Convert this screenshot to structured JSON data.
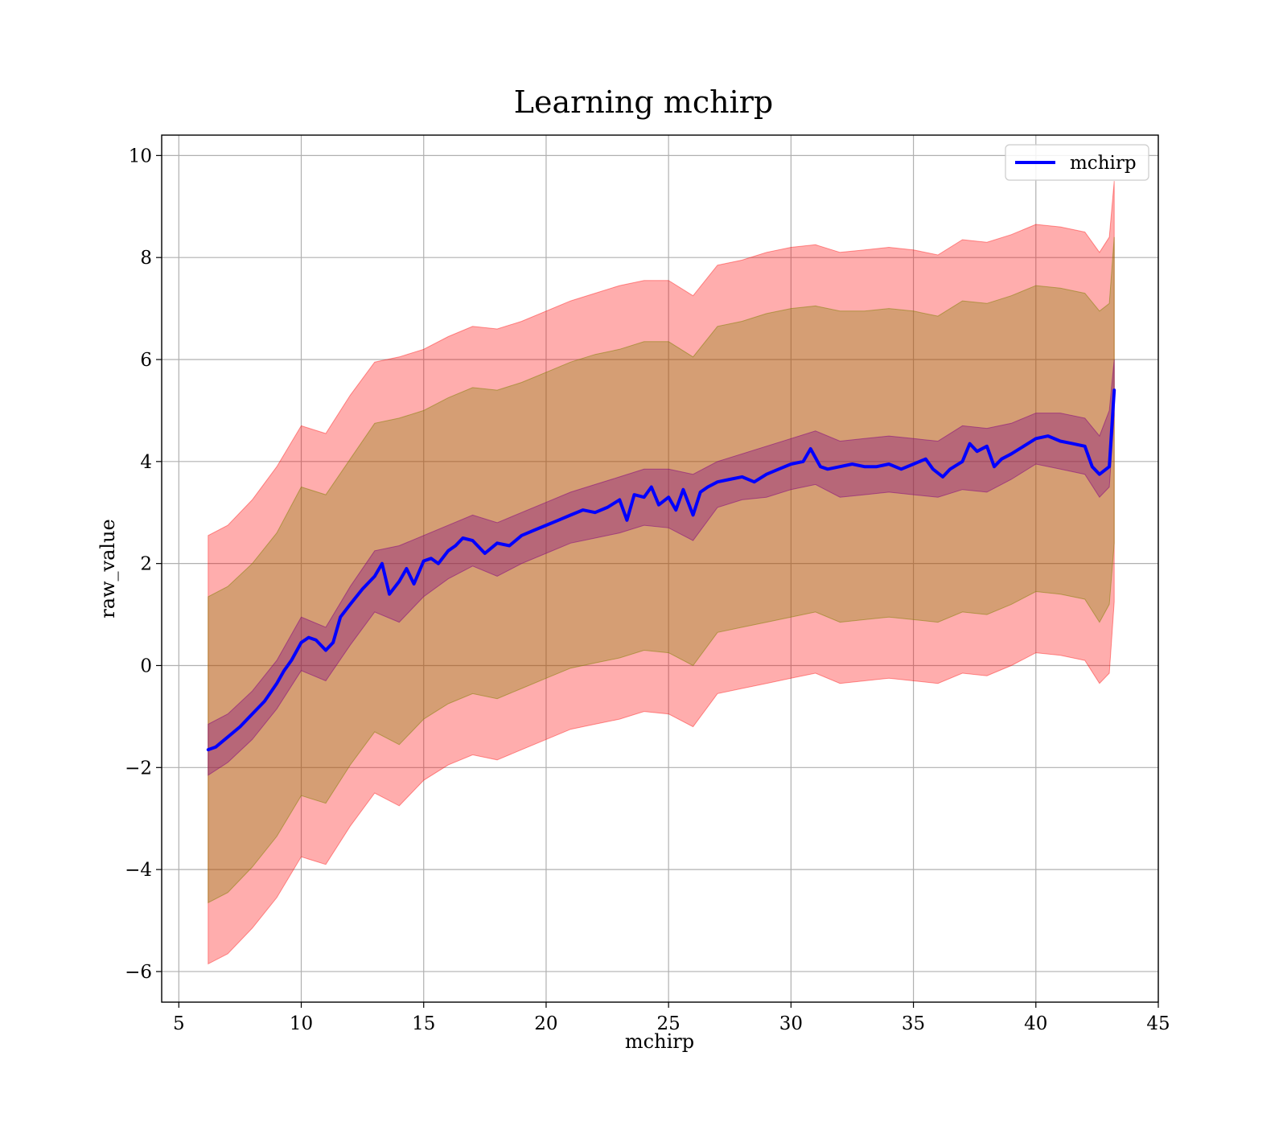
{
  "chart_data": {
    "type": "line",
    "title": "Learning mchirp",
    "xlabel": "mchirp",
    "ylabel": "raw_value",
    "xlim": [
      4.3,
      45
    ],
    "ylim": [
      -6.6,
      10.4
    ],
    "xticks": [
      5,
      10,
      15,
      20,
      25,
      30,
      35,
      40,
      45
    ],
    "yticks": [
      -6,
      -4,
      -2,
      0,
      2,
      4,
      6,
      8,
      10
    ],
    "xtick_labels": [
      "5",
      "10",
      "15",
      "20",
      "25",
      "30",
      "35",
      "40",
      "45"
    ],
    "ytick_labels": [
      "−6",
      "−4",
      "−2",
      "0",
      "2",
      "4",
      "6",
      "8",
      "10"
    ],
    "grid": true,
    "legend": {
      "position": "upper right",
      "entries": [
        "mchirp"
      ]
    },
    "colors": {
      "line": "#0000ff",
      "outer_band": "#ff0000",
      "middle_band": "#808000",
      "inner_band": "#800080"
    },
    "band_opacity": {
      "outer": 0.32,
      "middle": 0.33,
      "inner": 0.35
    },
    "series": [
      {
        "name": "mchirp",
        "style": "line",
        "x": [
          6.2,
          6.5,
          7.0,
          7.5,
          8.0,
          8.5,
          9.0,
          9.3,
          9.6,
          10.0,
          10.3,
          10.6,
          11.0,
          11.3,
          11.6,
          12.0,
          12.5,
          13.0,
          13.3,
          13.6,
          14.0,
          14.3,
          14.6,
          15.0,
          15.3,
          15.6,
          16.0,
          16.3,
          16.6,
          17.0,
          17.5,
          18.0,
          18.5,
          19.0,
          19.5,
          20.0,
          20.5,
          21.0,
          21.5,
          22.0,
          22.5,
          23.0,
          23.3,
          23.6,
          24.0,
          24.3,
          24.6,
          25.0,
          25.3,
          25.6,
          26.0,
          26.3,
          26.6,
          27.0,
          27.5,
          28.0,
          28.5,
          29.0,
          29.5,
          30.0,
          30.5,
          30.8,
          31.2,
          31.5,
          32.0,
          32.5,
          33.0,
          33.5,
          34.0,
          34.5,
          35.0,
          35.5,
          35.8,
          36.2,
          36.5,
          37.0,
          37.3,
          37.6,
          38.0,
          38.3,
          38.6,
          39.0,
          39.5,
          40.0,
          40.5,
          41.0,
          41.5,
          42.0,
          42.3,
          42.6,
          43.0,
          43.2
        ],
        "y": [
          -1.65,
          -1.6,
          -1.4,
          -1.2,
          -0.95,
          -0.7,
          -0.35,
          -0.1,
          0.1,
          0.45,
          0.55,
          0.5,
          0.3,
          0.45,
          0.95,
          1.2,
          1.5,
          1.75,
          2.0,
          1.4,
          1.65,
          1.9,
          1.6,
          2.05,
          2.1,
          2.0,
          2.25,
          2.35,
          2.5,
          2.45,
          2.2,
          2.4,
          2.35,
          2.55,
          2.65,
          2.75,
          2.85,
          2.95,
          3.05,
          3.0,
          3.1,
          3.25,
          2.85,
          3.35,
          3.3,
          3.5,
          3.15,
          3.3,
          3.05,
          3.45,
          2.95,
          3.4,
          3.5,
          3.6,
          3.65,
          3.7,
          3.6,
          3.75,
          3.85,
          3.95,
          4.0,
          4.25,
          3.9,
          3.85,
          3.9,
          3.95,
          3.9,
          3.9,
          3.95,
          3.85,
          3.95,
          4.05,
          3.85,
          3.7,
          3.85,
          4.0,
          4.35,
          4.2,
          4.3,
          3.9,
          4.05,
          4.15,
          4.3,
          4.45,
          4.5,
          4.4,
          4.35,
          4.3,
          3.9,
          3.75,
          3.9,
          5.4
        ]
      },
      {
        "name": "",
        "style": "band-inner",
        "x": [
          6.2,
          7.0,
          8.0,
          9.0,
          10.0,
          11.0,
          12.0,
          13.0,
          14.0,
          15.0,
          16.0,
          17.0,
          18.0,
          19.0,
          20.0,
          21.0,
          22.0,
          23.0,
          24.0,
          25.0,
          26.0,
          27.0,
          28.0,
          29.0,
          30.0,
          31.0,
          32.0,
          33.0,
          34.0,
          35.0,
          36.0,
          37.0,
          38.0,
          39.0,
          40.0,
          41.0,
          42.0,
          42.6,
          43.0,
          43.2
        ],
        "upper": [
          -1.15,
          -0.95,
          -0.5,
          0.1,
          0.95,
          0.75,
          1.55,
          2.25,
          2.35,
          2.55,
          2.75,
          2.95,
          2.8,
          3.0,
          3.2,
          3.4,
          3.55,
          3.7,
          3.85,
          3.85,
          3.75,
          4.0,
          4.15,
          4.3,
          4.45,
          4.6,
          4.4,
          4.45,
          4.5,
          4.45,
          4.4,
          4.7,
          4.65,
          4.75,
          4.95,
          4.95,
          4.85,
          4.5,
          5.0,
          6.0
        ],
        "lower": [
          -2.15,
          -1.9,
          -1.45,
          -0.85,
          -0.1,
          -0.3,
          0.4,
          1.05,
          0.85,
          1.35,
          1.7,
          1.95,
          1.75,
          2.0,
          2.2,
          2.4,
          2.5,
          2.6,
          2.75,
          2.7,
          2.45,
          3.1,
          3.25,
          3.3,
          3.45,
          3.55,
          3.3,
          3.35,
          3.4,
          3.35,
          3.3,
          3.45,
          3.4,
          3.65,
          3.95,
          3.85,
          3.75,
          3.3,
          3.5,
          4.9
        ]
      },
      {
        "name": "",
        "style": "band-middle",
        "x": [
          6.2,
          7.0,
          8.0,
          9.0,
          10.0,
          11.0,
          12.0,
          13.0,
          14.0,
          15.0,
          16.0,
          17.0,
          18.0,
          19.0,
          20.0,
          21.0,
          22.0,
          23.0,
          24.0,
          25.0,
          26.0,
          27.0,
          28.0,
          29.0,
          30.0,
          31.0,
          32.0,
          33.0,
          34.0,
          35.0,
          36.0,
          37.0,
          38.0,
          39.0,
          40.0,
          41.0,
          42.0,
          42.6,
          43.0,
          43.2
        ],
        "upper": [
          1.35,
          1.55,
          2.0,
          2.6,
          3.5,
          3.35,
          4.05,
          4.75,
          4.85,
          5.0,
          5.25,
          5.45,
          5.4,
          5.55,
          5.75,
          5.95,
          6.1,
          6.2,
          6.35,
          6.35,
          6.05,
          6.65,
          6.75,
          6.9,
          7.0,
          7.05,
          6.95,
          6.95,
          7.0,
          6.95,
          6.85,
          7.15,
          7.1,
          7.25,
          7.45,
          7.4,
          7.3,
          6.95,
          7.1,
          8.4
        ]
      },
      {
        "name": "",
        "style": "band-middle-lower",
        "lower": [
          -4.65,
          -4.45,
          -3.95,
          -3.35,
          -2.55,
          -2.7,
          -1.95,
          -1.3,
          -1.55,
          -1.05,
          -0.75,
          -0.55,
          -0.65,
          -0.45,
          -0.25,
          -0.05,
          0.05,
          0.15,
          0.3,
          0.25,
          0.0,
          0.65,
          0.75,
          0.85,
          0.95,
          1.05,
          0.85,
          0.9,
          0.95,
          0.9,
          0.85,
          1.05,
          1.0,
          1.2,
          1.45,
          1.4,
          1.3,
          0.85,
          1.2,
          2.4
        ]
      },
      {
        "name": "",
        "style": "band-outer",
        "upper": [
          2.55,
          2.75,
          3.25,
          3.9,
          4.7,
          4.55,
          5.3,
          5.95,
          6.05,
          6.2,
          6.45,
          6.65,
          6.6,
          6.75,
          6.95,
          7.15,
          7.3,
          7.45,
          7.55,
          7.55,
          7.25,
          7.85,
          7.95,
          8.1,
          8.2,
          8.25,
          8.1,
          8.15,
          8.2,
          8.15,
          8.05,
          8.35,
          8.3,
          8.45,
          8.65,
          8.6,
          8.5,
          8.1,
          8.4,
          9.5
        ],
        "lower": [
          -5.85,
          -5.65,
          -5.15,
          -4.55,
          -3.75,
          -3.9,
          -3.15,
          -2.5,
          -2.75,
          -2.25,
          -1.95,
          -1.75,
          -1.85,
          -1.65,
          -1.45,
          -1.25,
          -1.15,
          -1.05,
          -0.9,
          -0.95,
          -1.2,
          -0.55,
          -0.45,
          -0.35,
          -0.25,
          -0.15,
          -0.35,
          -0.3,
          -0.25,
          -0.3,
          -0.35,
          -0.15,
          -0.2,
          0.0,
          0.25,
          0.2,
          0.1,
          -0.35,
          -0.15,
          1.25
        ]
      }
    ]
  }
}
